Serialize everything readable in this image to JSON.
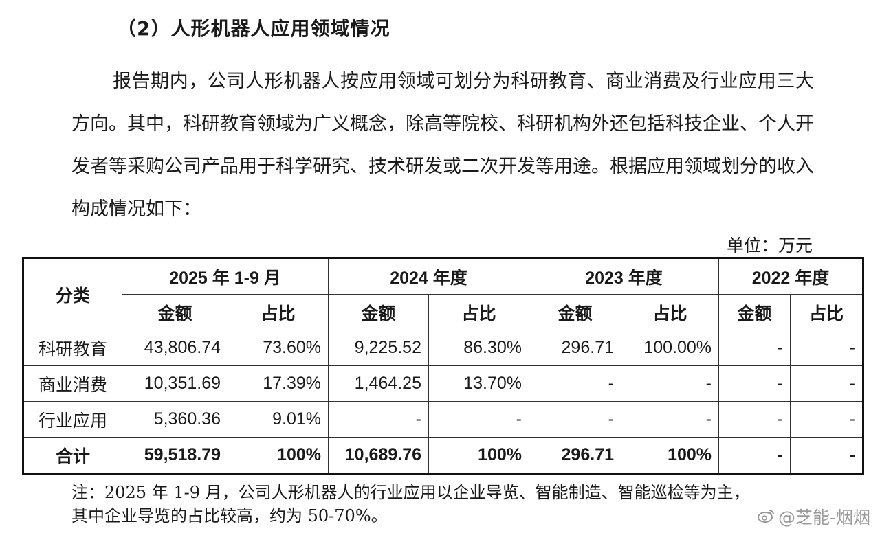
{
  "heading": "（2）人形机器人应用领域情况",
  "paragraph": {
    "text": "报告期内，公司人形机器人按应用领域可划分为科研教育、商业消费及行业应用三大方向。其中，科研教育领域为广义概念，除高等院校、科研机构外还包括科技企业、个人开发者等采购公司产品用于科学研究、技术研发或二次开发等用途。根据应用领域划分的收入构成情况如下："
  },
  "unit": "单位：万元",
  "table": {
    "category_header": "分类",
    "periods": [
      "2025 年 1-9 月",
      "2024 年度",
      "2023 年度",
      "2022 年度"
    ],
    "sub_headers": [
      "金额",
      "占比"
    ],
    "rows": [
      {
        "category": "科研教育",
        "values": [
          "43,806.74",
          "73.60%",
          "9,225.52",
          "86.30%",
          "296.71",
          "100.00%",
          "-",
          "-"
        ]
      },
      {
        "category": "商业消费",
        "values": [
          "10,351.69",
          "17.39%",
          "1,464.25",
          "13.70%",
          "-",
          "-",
          "-",
          "-"
        ]
      },
      {
        "category": "行业应用",
        "values": [
          "5,360.36",
          "9.01%",
          "-",
          "-",
          "-",
          "-",
          "-",
          "-"
        ]
      },
      {
        "category": "合计",
        "values": [
          "59,518.79",
          "100%",
          "10,689.76",
          "100%",
          "296.71",
          "100%",
          "-",
          "-"
        ]
      }
    ]
  },
  "note": {
    "line1": "注：2025 年 1-9 月，公司人形机器人的行业应用以企业导览、智能制造、智能巡检等为主，",
    "line2": "其中企业导览的占比较高，约为 50-70%。"
  },
  "watermark": {
    "icon": "weibo-icon",
    "text": "@芝能-烟烟"
  }
}
